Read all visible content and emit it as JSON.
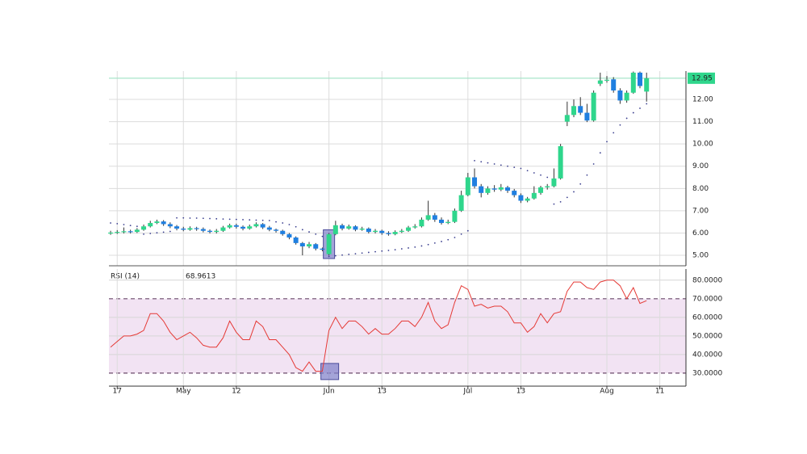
{
  "chart_data": [
    {
      "type": "candlestick",
      "open": [
        5.98,
        6.02,
        6.05,
        6.08,
        6.05,
        6.15,
        6.3,
        6.45,
        6.52,
        6.4,
        6.3,
        6.2,
        6.15,
        6.22,
        6.18,
        6.1,
        6.05,
        6.1,
        6.25,
        6.35,
        6.28,
        6.2,
        6.3,
        6.4,
        6.25,
        6.15,
        6.1,
        5.95,
        5.8,
        5.55,
        5.4,
        5.5,
        5.3,
        5.05,
        5.95,
        6.35,
        6.2,
        6.3,
        6.15,
        6.2,
        6.05,
        6.1,
        6.0,
        5.95,
        6.05,
        6.1,
        6.25,
        6.3,
        6.6,
        6.8,
        6.6,
        6.45,
        6.5,
        7.0,
        7.7,
        8.5,
        8.1,
        7.8,
        8.0,
        7.95,
        8.05,
        7.9,
        7.7,
        7.45,
        7.55,
        7.8,
        8.05,
        8.1,
        8.45,
        11.0,
        11.3,
        11.7,
        11.4,
        11.05,
        12.7,
        12.85,
        12.9,
        12.4,
        11.95,
        12.3,
        13.2,
        12.35
      ],
      "high": [
        6.1,
        6.13,
        6.25,
        6.15,
        6.22,
        6.38,
        6.55,
        6.6,
        6.58,
        6.48,
        6.36,
        6.28,
        6.3,
        6.28,
        6.25,
        6.16,
        6.18,
        6.32,
        6.42,
        6.42,
        6.34,
        6.38,
        6.48,
        6.45,
        6.32,
        6.2,
        6.15,
        6.0,
        5.85,
        5.6,
        5.6,
        5.55,
        5.35,
        6.0,
        6.55,
        6.42,
        6.38,
        6.35,
        6.28,
        6.25,
        6.18,
        6.15,
        6.08,
        6.12,
        6.18,
        6.32,
        6.4,
        6.7,
        7.45,
        6.9,
        6.7,
        6.6,
        7.1,
        7.9,
        8.7,
        8.9,
        8.2,
        8.1,
        8.15,
        8.2,
        8.12,
        7.98,
        7.78,
        7.62,
        8.1,
        8.12,
        8.2,
        8.9,
        10.0,
        11.9,
        12.0,
        12.1,
        11.8,
        12.4,
        13.2,
        13.05,
        13.0,
        12.5,
        12.4,
        13.25,
        13.25,
        13.2
      ],
      "low": [
        5.92,
        5.96,
        5.98,
        5.98,
        6.0,
        6.1,
        6.25,
        6.4,
        6.32,
        6.22,
        6.12,
        6.08,
        6.1,
        6.1,
        6.03,
        5.98,
        5.98,
        6.05,
        6.2,
        6.2,
        6.12,
        6.15,
        6.25,
        6.18,
        6.08,
        6.02,
        5.88,
        5.72,
        5.48,
        5.0,
        5.32,
        5.22,
        5.18,
        5.0,
        5.9,
        6.12,
        6.15,
        6.08,
        6.1,
        5.98,
        5.98,
        5.92,
        5.88,
        5.9,
        6.0,
        6.05,
        6.2,
        6.25,
        6.55,
        6.5,
        6.38,
        6.4,
        6.45,
        6.95,
        7.65,
        8.0,
        7.6,
        7.72,
        7.85,
        7.88,
        7.8,
        7.6,
        7.35,
        7.38,
        7.5,
        7.72,
        7.95,
        8.05,
        8.4,
        10.8,
        11.2,
        11.3,
        10.98,
        11.0,
        12.6,
        12.75,
        12.3,
        11.8,
        11.85,
        12.25,
        12.5,
        11.9
      ],
      "close": [
        6.02,
        6.05,
        6.08,
        6.05,
        6.15,
        6.3,
        6.45,
        6.52,
        6.4,
        6.3,
        6.2,
        6.15,
        6.22,
        6.18,
        6.1,
        6.05,
        6.1,
        6.25,
        6.35,
        6.28,
        6.2,
        6.3,
        6.4,
        6.25,
        6.15,
        6.1,
        5.95,
        5.8,
        5.55,
        5.4,
        5.5,
        5.3,
        5.25,
        5.95,
        6.35,
        6.2,
        6.3,
        6.15,
        6.2,
        6.05,
        6.1,
        6.0,
        5.95,
        6.05,
        6.1,
        6.25,
        6.3,
        6.6,
        6.8,
        6.6,
        6.45,
        6.5,
        7.0,
        7.7,
        8.5,
        8.1,
        7.8,
        8.0,
        7.95,
        8.05,
        7.9,
        7.7,
        7.45,
        7.55,
        7.8,
        8.05,
        8.1,
        8.45,
        9.9,
        11.3,
        11.7,
        11.4,
        11.05,
        12.3,
        12.85,
        12.88,
        12.4,
        11.95,
        12.3,
        13.2,
        12.6,
        12.95
      ],
      "sar": [
        6.45,
        6.42,
        6.38,
        6.34,
        6.3,
        5.95,
        5.98,
        6.01,
        6.04,
        6.07,
        6.68,
        6.68,
        6.67,
        6.67,
        6.66,
        6.65,
        6.64,
        6.63,
        6.62,
        6.61,
        6.6,
        6.59,
        6.58,
        6.57,
        6.56,
        6.5,
        6.45,
        6.38,
        6.28,
        6.15,
        6.05,
        5.95,
        5.85,
        4.95,
        4.98,
        5.01,
        5.04,
        5.07,
        5.1,
        5.13,
        5.16,
        5.19,
        5.22,
        5.25,
        5.29,
        5.33,
        5.37,
        5.42,
        5.48,
        5.55,
        5.62,
        5.7,
        5.8,
        5.95,
        6.1,
        9.25,
        9.2,
        9.15,
        9.1,
        9.05,
        9.0,
        8.95,
        8.9,
        8.8,
        8.7,
        8.6,
        8.5,
        7.3,
        7.4,
        7.6,
        7.85,
        8.2,
        8.6,
        9.1,
        9.6,
        10.1,
        10.5,
        10.85,
        11.15,
        11.4,
        11.6,
        11.8
      ],
      "up_color": "#2fd68c",
      "down_color": "#1f7fe0",
      "wick_color": "#333333",
      "sar_color": "#3b3f8f",
      "last_line_color": "#9fe3c4",
      "highlight_x": 33,
      "xlim": [
        -0.25,
        86.95
      ],
      "ylim": [
        4.53,
        13.27
      ],
      "yticks": [
        {
          "value": 5,
          "label": "5.00"
        },
        {
          "value": 6,
          "label": "6.00"
        },
        {
          "value": 7,
          "label": "7.00"
        },
        {
          "value": 8,
          "label": "8.00"
        },
        {
          "value": 9,
          "label": "9.00"
        },
        {
          "value": 10,
          "label": "10.00"
        },
        {
          "value": 11,
          "label": "11.00"
        },
        {
          "value": 12,
          "label": "12.00"
        }
      ],
      "grid": true
    },
    {
      "type": "line",
      "name": "RSI (14)",
      "color": "#e53935",
      "values": [
        44,
        47,
        50,
        50,
        51,
        53,
        62,
        62,
        58,
        52,
        48,
        50,
        52,
        49,
        45,
        44,
        44,
        49,
        58,
        52,
        48,
        48,
        58,
        55,
        48,
        48,
        44,
        40,
        33,
        31,
        36,
        31,
        31,
        53,
        60,
        54,
        58,
        58,
        55,
        51,
        54,
        51,
        51,
        54,
        58,
        58,
        55,
        60,
        68,
        58,
        54,
        56,
        68,
        77,
        75,
        66,
        67,
        65,
        66,
        66,
        63,
        57,
        57,
        52,
        55,
        62,
        57,
        62,
        63,
        74,
        79,
        79,
        76,
        75,
        79,
        80,
        80,
        77,
        70,
        76,
        67.5,
        68.9613
      ],
      "band": [
        30,
        70
      ],
      "band_color": "#f2e3f3",
      "xlim": [
        -0.25,
        86.95
      ],
      "ylim": [
        23,
        86
      ],
      "xticks": [
        {
          "value": 1,
          "label": "17"
        },
        {
          "value": 11,
          "label": "May"
        },
        {
          "value": 19,
          "label": "12"
        },
        {
          "value": 33,
          "label": "Jun"
        },
        {
          "value": 41,
          "label": "13"
        },
        {
          "value": 54,
          "label": "Jul"
        },
        {
          "value": 62,
          "label": "13"
        },
        {
          "value": 75,
          "label": "Aug"
        },
        {
          "value": 83,
          "label": "11"
        }
      ],
      "yticks": [
        {
          "value": 80,
          "label": "80.0000"
        },
        {
          "value": 70,
          "label": "70.0000"
        },
        {
          "value": 60,
          "label": "60.0000"
        },
        {
          "value": 50,
          "label": "50.0000"
        },
        {
          "value": 40,
          "label": "40.0000"
        },
        {
          "value": 30,
          "label": "30.0000"
        }
      ],
      "grid": true
    }
  ]
}
